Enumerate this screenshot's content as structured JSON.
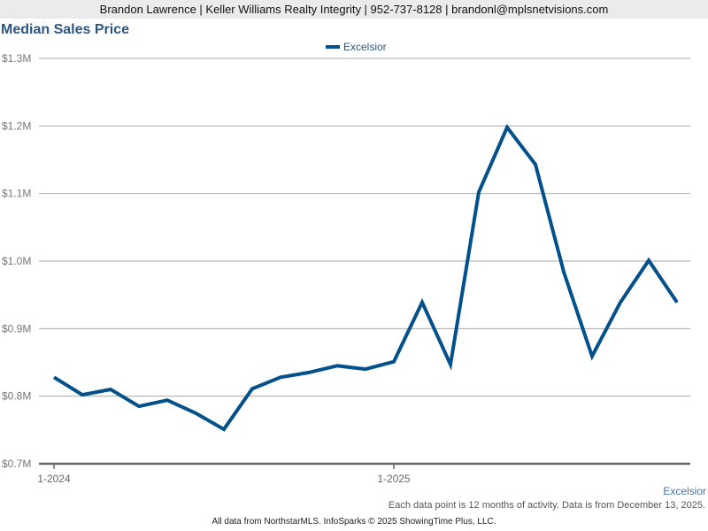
{
  "header": {
    "contact": "Brandon Lawrence | Keller Williams Realty Integrity | 952-737-8128 | brandonl@mplsnetvisions.com"
  },
  "title": "Median Sales Price",
  "legend": {
    "label": "Excelsior",
    "color": "#03508a"
  },
  "area_label": "Excelsior",
  "note": "Each data point is 12 months of activity. Data is from December 13, 2025.",
  "footer": "All data from NorthstarMLS. InfoSparks © 2025 ShowingTime Plus, LLC.",
  "chart_data": {
    "type": "line",
    "title": "Median Sales Price",
    "xlabel": "",
    "ylabel": "",
    "ylim": [
      700000,
      1300000
    ],
    "yticks": [
      "$0.7M",
      "$0.8M",
      "$0.9M",
      "$1.0M",
      "$1.1M",
      "$1.2M",
      "$1.3M"
    ],
    "xticks": [
      {
        "label": "1-2024",
        "index": 0
      },
      {
        "label": "1-2025",
        "index": 12
      }
    ],
    "grid": true,
    "legend_position": "top",
    "x": [
      "1-2024",
      "2-2024",
      "3-2024",
      "4-2024",
      "5-2024",
      "6-2024",
      "7-2024",
      "8-2024",
      "9-2024",
      "10-2024",
      "11-2024",
      "12-2024",
      "1-2025",
      "2-2025",
      "3-2025",
      "4-2025",
      "5-2025",
      "6-2025",
      "7-2025",
      "8-2025",
      "9-2025",
      "10-2025",
      "11-2025"
    ],
    "series": [
      {
        "name": "Excelsior",
        "color": "#03508a",
        "values": [
          828000,
          802000,
          810000,
          785000,
          794000,
          775000,
          751000,
          811000,
          828000,
          835000,
          845000,
          840000,
          851000,
          939000,
          847000,
          1102000,
          1198000,
          1143000,
          984000,
          859000,
          939000,
          1001000,
          939000
        ]
      }
    ]
  }
}
